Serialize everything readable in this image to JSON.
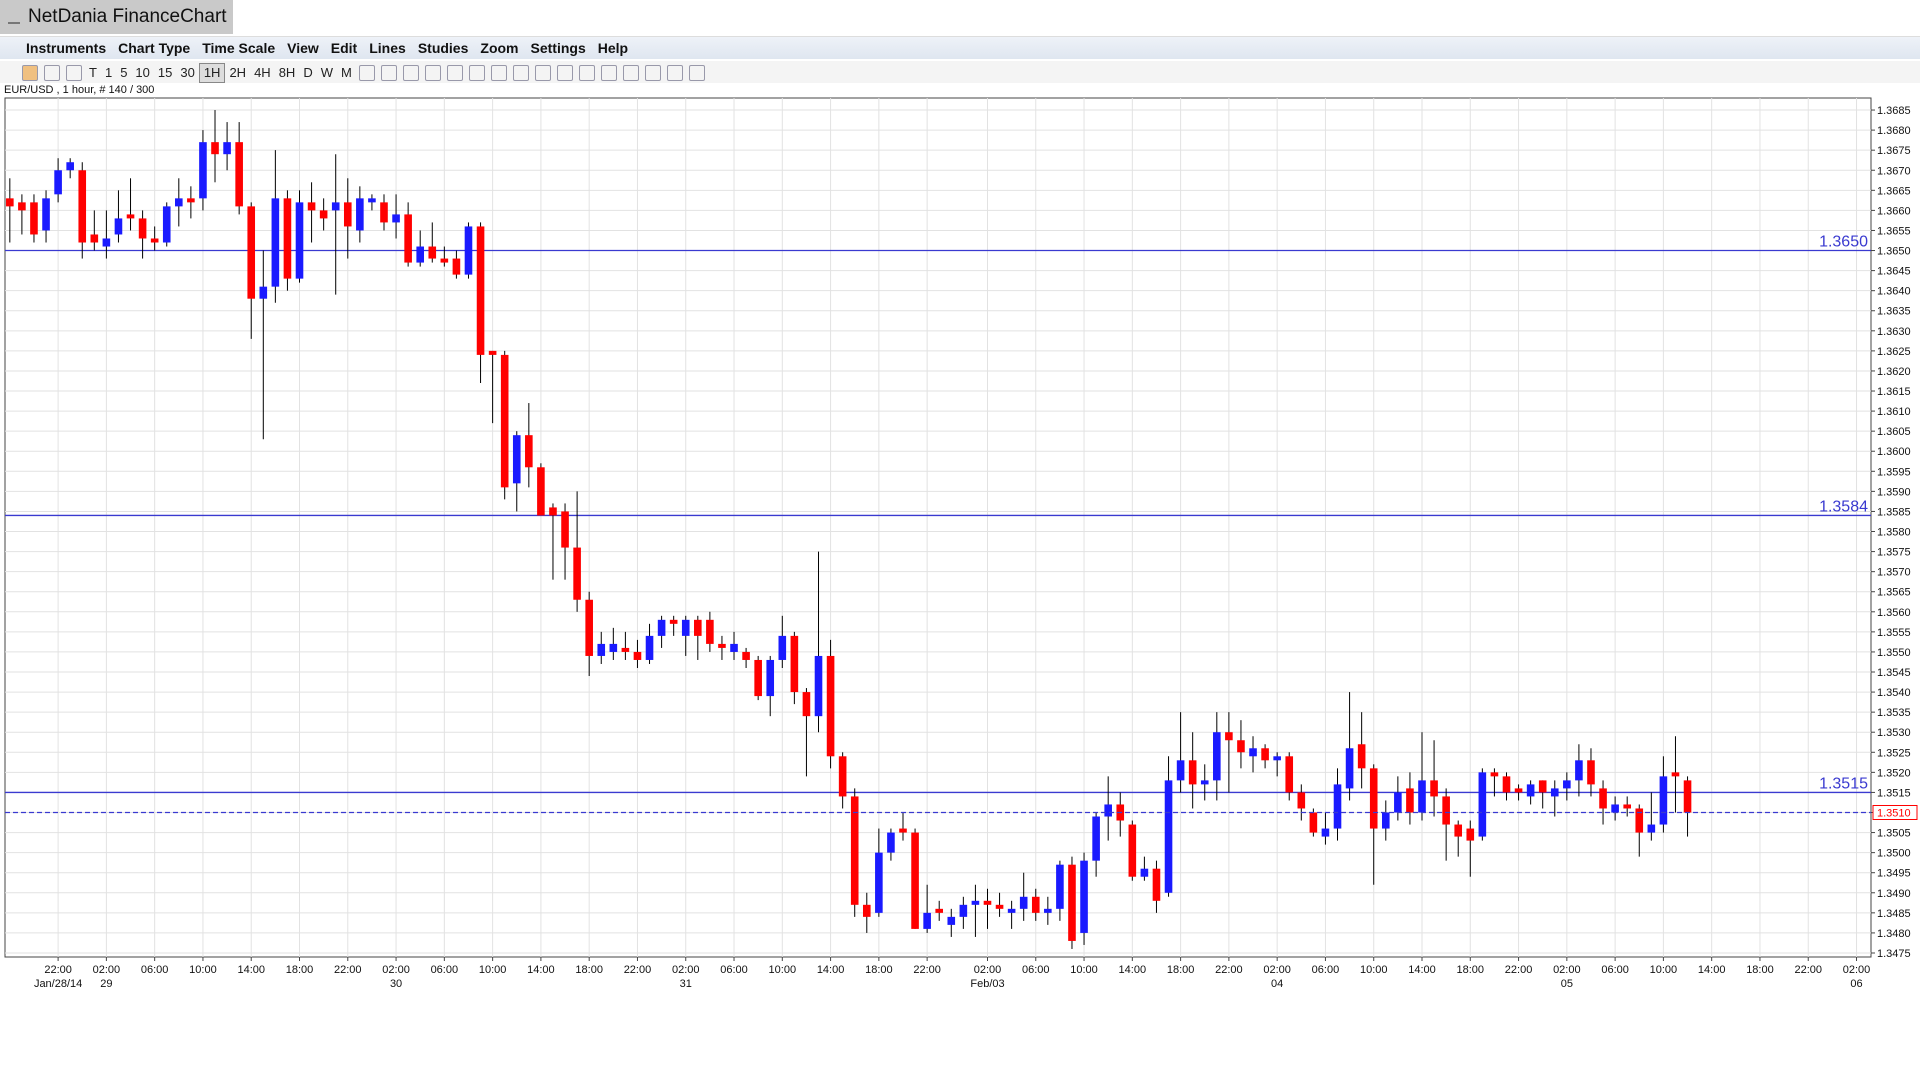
{
  "window_title": "NetDania FinanceChart",
  "menu": [
    "Instruments",
    "Chart Type",
    "Time Scale",
    "View",
    "Edit",
    "Lines",
    "Studies",
    "Zoom",
    "Settings",
    "Help"
  ],
  "toolbar": [
    "T",
    "1",
    "5",
    "10",
    "15",
    "30",
    "1H",
    "2H",
    "4H",
    "8H",
    "D",
    "W",
    "M"
  ],
  "instrument_info": "EUR/USD , 1 hour, # 140 / 300",
  "chart_data": {
    "type": "candlestick",
    "up_color": "#1a1aff",
    "down_color": "#ff0000",
    "level_color": "#3a3ad0",
    "grid": true,
    "categories": [
      null,
      null,
      null,
      null,
      "22:00",
      null,
      null,
      null,
      "02:00",
      null,
      null,
      null,
      "06:00",
      null,
      null,
      null,
      "10:00",
      null,
      null,
      null,
      "14:00",
      null,
      null,
      null,
      "18:00",
      null,
      null,
      null,
      "22:00",
      null,
      null,
      null,
      "02:00",
      null,
      null,
      null,
      "06:00",
      null,
      null,
      null,
      "10:00",
      null,
      null,
      null,
      "14:00",
      null,
      null,
      null,
      "18:00",
      null,
      null,
      null,
      "22:00",
      null,
      null,
      null,
      "02:00",
      null,
      null,
      null,
      "06:00",
      null,
      null,
      null,
      "10:00",
      null,
      null,
      null,
      "14:00",
      null,
      null,
      null,
      "18:00",
      null,
      null,
      null,
      "22:00",
      null,
      null,
      null,
      null,
      "02:00",
      null,
      null,
      null,
      "06:00",
      null,
      null,
      null,
      "10:00",
      null,
      null,
      null,
      "14:00",
      null,
      null,
      null,
      "18:00",
      null,
      null,
      null,
      "22:00",
      null,
      null,
      null,
      "02:00",
      null,
      null,
      null,
      "06:00",
      null,
      null,
      null,
      "10:00",
      null,
      null,
      null,
      "14:00",
      null,
      null,
      null,
      "18:00",
      null,
      null,
      null,
      "22:00",
      null,
      null,
      null,
      "02:00",
      null,
      null,
      null,
      "06:00",
      null,
      null,
      null,
      "10:00",
      null,
      null,
      null,
      "14:00",
      null,
      null,
      null,
      "18:00",
      null,
      null,
      null,
      "22:00",
      null,
      null,
      null,
      "02:00"
    ],
    "date_labels": [
      null,
      null,
      null,
      null,
      "Jan/28/14",
      null,
      null,
      null,
      "29",
      null,
      null,
      null,
      null,
      null,
      null,
      null,
      null,
      null,
      null,
      null,
      null,
      null,
      null,
      null,
      null,
      null,
      null,
      null,
      null,
      null,
      null,
      null,
      "30",
      null,
      null,
      null,
      null,
      null,
      null,
      null,
      null,
      null,
      null,
      null,
      null,
      null,
      null,
      null,
      null,
      null,
      null,
      null,
      null,
      null,
      null,
      null,
      "31",
      null,
      null,
      null,
      null,
      null,
      null,
      null,
      null,
      null,
      null,
      null,
      null,
      null,
      null,
      null,
      null,
      null,
      null,
      null,
      null,
      null,
      null,
      null,
      null,
      "Feb/03",
      null,
      null,
      null,
      null,
      null,
      null,
      null,
      null,
      null,
      null,
      null,
      null,
      null,
      null,
      null,
      null,
      null,
      null,
      null,
      null,
      null,
      null,
      null,
      "04",
      null,
      null,
      null,
      null,
      null,
      null,
      null,
      null,
      null,
      null,
      null,
      null,
      null,
      null,
      null,
      null,
      null,
      null,
      null,
      null,
      null,
      null,
      null,
      "05",
      null,
      null,
      null,
      null,
      null,
      null,
      null,
      null,
      null,
      null,
      null,
      null,
      null,
      null,
      null,
      null,
      null,
      null,
      null,
      null,
      null,
      null,
      null,
      "06"
    ],
    "open": [
      1.3663,
      1.3662,
      1.3662,
      1.3655,
      1.3664,
      1.367,
      1.367,
      1.3654,
      1.3651,
      1.3654,
      1.3659,
      1.3658,
      1.3653,
      1.3652,
      1.3661,
      1.3663,
      1.3663,
      1.3677,
      1.3674,
      1.3677,
      1.3661,
      1.3638,
      1.3641,
      1.3663,
      1.3643,
      1.3662,
      1.366,
      1.366,
      1.3662,
      1.3655,
      1.3662,
      1.3662,
      1.3657,
      1.3659,
      1.3647,
      1.3651,
      1.3648,
      1.3648,
      1.3644,
      1.3656,
      1.3625,
      1.3624,
      1.3592,
      1.3604,
      1.3596,
      1.3586,
      1.3585,
      1.3576,
      1.3563,
      1.3549,
      1.355,
      1.3551,
      1.355,
      1.3548,
      1.3554,
      1.3558,
      1.3554,
      1.3558,
      1.3558,
      1.3552,
      1.355,
      1.355,
      1.3548,
      1.3539,
      1.3548,
      1.3554,
      1.354,
      1.3534,
      1.3549,
      1.3524,
      1.3514,
      1.3487,
      1.3485,
      1.35,
      1.3506,
      1.3505,
      1.3481,
      1.3486,
      1.3482,
      1.3484,
      1.3487,
      1.3488,
      1.3487,
      1.3485,
      1.3486,
      1.3489,
      1.3485,
      1.3486,
      1.3497,
      1.348,
      1.3498,
      1.3509,
      1.3512,
      1.3507,
      1.3494,
      1.3496,
      1.349,
      1.3518,
      1.3523,
      1.3517,
      1.3518,
      1.353,
      1.3528,
      1.3524,
      1.3526,
      1.3523,
      1.3524,
      1.3515,
      1.351,
      1.3504,
      1.3506,
      1.3516,
      1.3527,
      1.3521,
      1.3506,
      1.351,
      1.3516,
      1.351,
      1.3518,
      1.3514,
      1.3507,
      1.3506,
      1.3504,
      1.352,
      1.3519,
      1.3516,
      1.3514,
      1.3518,
      1.3514,
      1.3516,
      1.3518,
      1.3523,
      1.3516,
      1.351,
      1.3512,
      1.3511,
      1.3505,
      1.3507,
      1.352,
      1.3518,
      null,
      null,
      null,
      null,
      null,
      null,
      null,
      null,
      null,
      null,
      null,
      null,
      null,
      null
    ],
    "high": [
      1.3668,
      1.3664,
      1.3664,
      1.3665,
      1.3673,
      1.3673,
      1.3672,
      1.366,
      1.366,
      1.3665,
      1.3668,
      1.366,
      1.3656,
      1.3662,
      1.3668,
      1.3666,
      1.368,
      1.3685,
      1.3682,
      1.3682,
      1.3662,
      1.365,
      1.3675,
      1.3665,
      1.3665,
      1.3667,
      1.3663,
      1.3674,
      1.3668,
      1.3666,
      1.3664,
      1.3664,
      1.3664,
      1.3662,
      1.3655,
      1.3657,
      1.3651,
      1.365,
      1.3657,
      1.3657,
      1.3625,
      1.3625,
      1.3605,
      1.3612,
      1.3597,
      1.3587,
      1.3587,
      1.359,
      1.3565,
      1.3555,
      1.3556,
      1.3555,
      1.3553,
      1.3557,
      1.3559,
      1.3559,
      1.3559,
      1.3559,
      1.356,
      1.3554,
      1.3555,
      1.3551,
      1.3549,
      1.3549,
      1.3559,
      1.3555,
      1.3541,
      1.3575,
      1.3553,
      1.3525,
      1.3516,
      1.349,
      1.3506,
      1.3506,
      1.351,
      1.3506,
      1.3492,
      1.3488,
      1.3486,
      1.3489,
      1.3492,
      1.3491,
      1.349,
      1.3488,
      1.3495,
      1.3491,
      1.3489,
      1.3498,
      1.3499,
      1.35,
      1.351,
      1.3519,
      1.3515,
      1.3508,
      1.3499,
      1.3498,
      1.3524,
      1.3535,
      1.353,
      1.3522,
      1.3535,
      1.3535,
      1.3533,
      1.3529,
      1.3527,
      1.3525,
      1.3525,
      1.3517,
      1.3511,
      1.351,
      1.3521,
      1.354,
      1.3535,
      1.3522,
      1.3513,
      1.3519,
      1.352,
      1.353,
      1.3528,
      1.3516,
      1.3508,
      1.3508,
      1.3521,
      1.3521,
      1.352,
      1.3517,
      1.3518,
      1.3518,
      1.3518,
      1.352,
      1.3527,
      1.3526,
      1.3518,
      1.3514,
      1.3514,
      1.3512,
      1.3515,
      1.3524,
      1.3529,
      1.3519,
      null,
      null,
      null,
      null,
      null,
      null,
      null,
      null,
      null,
      null,
      null,
      null,
      null,
      null
    ],
    "low": [
      1.3652,
      1.3654,
      1.3652,
      1.3652,
      1.3662,
      1.3668,
      1.3648,
      1.365,
      1.3648,
      1.3652,
      1.3655,
      1.3648,
      1.365,
      1.3651,
      1.3656,
      1.3658,
      1.366,
      1.3667,
      1.367,
      1.3659,
      1.3628,
      1.3603,
      1.3637,
      1.364,
      1.3642,
      1.3652,
      1.3655,
      1.3639,
      1.3648,
      1.3652,
      1.366,
      1.3655,
      1.3653,
      1.3646,
      1.3646,
      1.3647,
      1.3646,
      1.3643,
      1.3643,
      1.3617,
      1.3607,
      1.3588,
      1.3585,
      1.3591,
      1.3584,
      1.3568,
      1.3568,
      1.356,
      1.3544,
      1.3547,
      1.3548,
      1.3548,
      1.3546,
      1.3547,
      1.3551,
      1.3554,
      1.3549,
      1.3548,
      1.355,
      1.3548,
      1.3548,
      1.3546,
      1.3538,
      1.3534,
      1.3546,
      1.3537,
      1.3519,
      1.353,
      1.3521,
      1.3511,
      1.3484,
      1.348,
      1.3484,
      1.3498,
      1.3503,
      1.3481,
      1.348,
      1.3483,
      1.3479,
      1.3481,
      1.3479,
      1.3481,
      1.3484,
      1.3481,
      1.3483,
      1.3483,
      1.3482,
      1.3483,
      1.3476,
      1.3477,
      1.3494,
      1.3503,
      1.3504,
      1.3493,
      1.3493,
      1.3485,
      1.3489,
      1.3515,
      1.3511,
      1.3513,
      1.3513,
      1.3515,
      1.3521,
      1.352,
      1.3521,
      1.3519,
      1.3513,
      1.3508,
      1.3504,
      1.3502,
      1.3503,
      1.3513,
      1.3516,
      1.3492,
      1.3503,
      1.3508,
      1.3507,
      1.3508,
      1.3509,
      1.3498,
      1.3499,
      1.3494,
      1.3503,
      1.3514,
      1.3513,
      1.3513,
      1.3512,
      1.3511,
      1.3509,
      1.3513,
      1.3514,
      1.3514,
      1.3507,
      1.3508,
      1.3509,
      1.3499,
      1.3503,
      1.3505,
      1.351,
      1.3504,
      null,
      null,
      null,
      null,
      null,
      null,
      null,
      null,
      null,
      null,
      null,
      null,
      null,
      null
    ],
    "close": [
      1.3661,
      1.366,
      1.3654,
      1.3663,
      1.367,
      1.3672,
      1.3652,
      1.3652,
      1.3653,
      1.3658,
      1.3658,
      1.3653,
      1.3652,
      1.3661,
      1.3663,
      1.3662,
      1.3677,
      1.3674,
      1.3677,
      1.3661,
      1.3638,
      1.3641,
      1.3663,
      1.3643,
      1.3662,
      1.366,
      1.3658,
      1.3662,
      1.3656,
      1.3663,
      1.3663,
      1.3657,
      1.3659,
      1.3647,
      1.3651,
      1.3648,
      1.3647,
      1.3644,
      1.3656,
      1.3624,
      1.3624,
      1.3591,
      1.3604,
      1.3596,
      1.3584,
      1.3584,
      1.3576,
      1.3563,
      1.3549,
      1.3552,
      1.3552,
      1.355,
      1.3548,
      1.3554,
      1.3558,
      1.3557,
      1.3558,
      1.3554,
      1.3552,
      1.3551,
      1.3552,
      1.3548,
      1.3539,
      1.3548,
      1.3554,
      1.354,
      1.3534,
      1.3549,
      1.3524,
      1.3514,
      1.3487,
      1.3484,
      1.35,
      1.3505,
      1.3505,
      1.3481,
      1.3485,
      1.3485,
      1.3484,
      1.3487,
      1.3488,
      1.3487,
      1.3486,
      1.3486,
      1.3489,
      1.3485,
      1.3486,
      1.3497,
      1.3478,
      1.3498,
      1.3509,
      1.3512,
      1.3508,
      1.3494,
      1.3496,
      1.3488,
      1.3518,
      1.3523,
      1.3517,
      1.3518,
      1.353,
      1.3528,
      1.3525,
      1.3526,
      1.3523,
      1.3524,
      1.3515,
      1.3511,
      1.3505,
      1.3506,
      1.3517,
      1.3526,
      1.3521,
      1.3506,
      1.351,
      1.3515,
      1.351,
      1.3518,
      1.3514,
      1.3507,
      1.3504,
      1.3503,
      1.352,
      1.3519,
      1.3515,
      1.3515,
      1.3517,
      1.3515,
      1.3516,
      1.3518,
      1.3523,
      1.3517,
      1.3511,
      1.3512,
      1.3511,
      1.3505,
      1.3507,
      1.3519,
      1.3519,
      1.351,
      null,
      null,
      null,
      null,
      null,
      null,
      null,
      null,
      null,
      null,
      null,
      null,
      null,
      null
    ],
    "ylim": [
      1.3474,
      1.3688
    ],
    "yticks": [
      1.3475,
      {
        "value": 1.348,
        "label": "1.3480"
      },
      1.3485,
      {
        "value": 1.349,
        "label": "1.3490"
      },
      1.3495,
      {
        "value": 1.35,
        "label": "1.3500"
      },
      1.3505,
      {
        "value": 1.351,
        "label": "1.3510"
      },
      1.3515,
      {
        "value": 1.352,
        "label": "1.3520"
      },
      1.3525,
      {
        "value": 1.353,
        "label": "1.3530"
      },
      1.3535,
      {
        "value": 1.354,
        "label": "1.3540"
      },
      1.3545,
      {
        "value": 1.355,
        "label": "1.3550"
      },
      1.3555,
      {
        "value": 1.356,
        "label": "1.3560"
      },
      1.3565,
      {
        "value": 1.357,
        "label": "1.3570"
      },
      1.3575,
      {
        "value": 1.358,
        "label": "1.3580"
      },
      1.3585,
      {
        "value": 1.359,
        "label": "1.3590"
      },
      1.3595,
      {
        "value": 1.36,
        "label": "1.3600"
      },
      1.3605,
      {
        "value": 1.361,
        "label": "1.3610"
      },
      1.3615,
      {
        "value": 1.362,
        "label": "1.3620"
      },
      1.3625,
      {
        "value": 1.363,
        "label": "1.3630"
      },
      1.3635,
      {
        "value": 1.364,
        "label": "1.3640"
      },
      1.3645,
      {
        "value": 1.365,
        "label": "1.3650"
      },
      1.3655,
      {
        "value": 1.366,
        "label": "1.3660"
      },
      1.3665,
      {
        "value": 1.367,
        "label": "1.3670"
      },
      1.3675,
      {
        "value": 1.368,
        "label": "1.3680"
      },
      1.3685
    ],
    "levels": [
      {
        "value": 1.365,
        "label": "1.3650"
      },
      {
        "value": 1.3584,
        "label": "1.3584"
      },
      {
        "value": 1.3515,
        "label": "1.3515"
      }
    ],
    "current_price": {
      "value": 1.351,
      "label": "1.3510"
    }
  }
}
